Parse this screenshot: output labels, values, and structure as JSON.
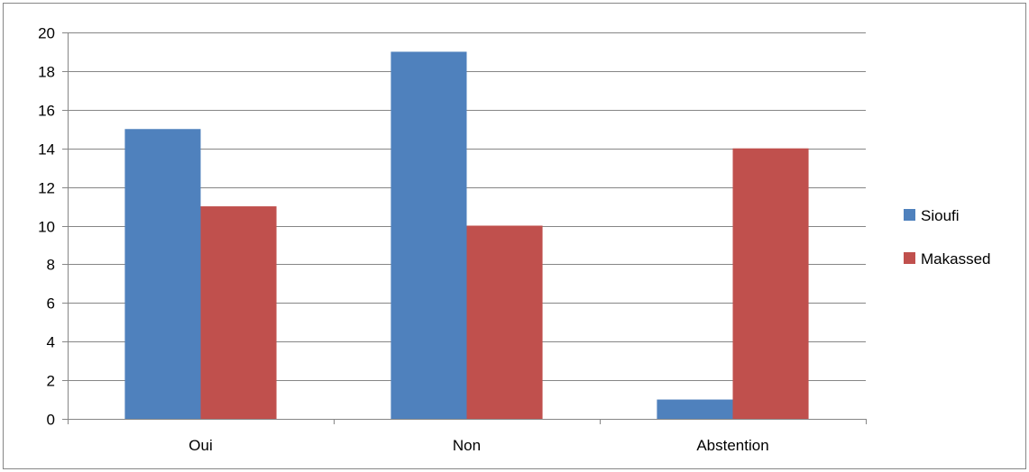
{
  "chart_data": {
    "type": "bar",
    "categories": [
      "Oui",
      "Non",
      "Abstention"
    ],
    "series": [
      {
        "name": "Sioufi",
        "values": [
          15,
          19,
          1
        ],
        "color": "#4F81BD"
      },
      {
        "name": "Makassed",
        "values": [
          11,
          10,
          14
        ],
        "color": "#C0504D"
      }
    ],
    "title": "",
    "xlabel": "",
    "ylabel": "",
    "ylim": [
      0,
      20
    ],
    "yticks": [
      0,
      2,
      4,
      6,
      8,
      10,
      12,
      14,
      16,
      18,
      20
    ],
    "grid": true,
    "legend_position": "right"
  }
}
